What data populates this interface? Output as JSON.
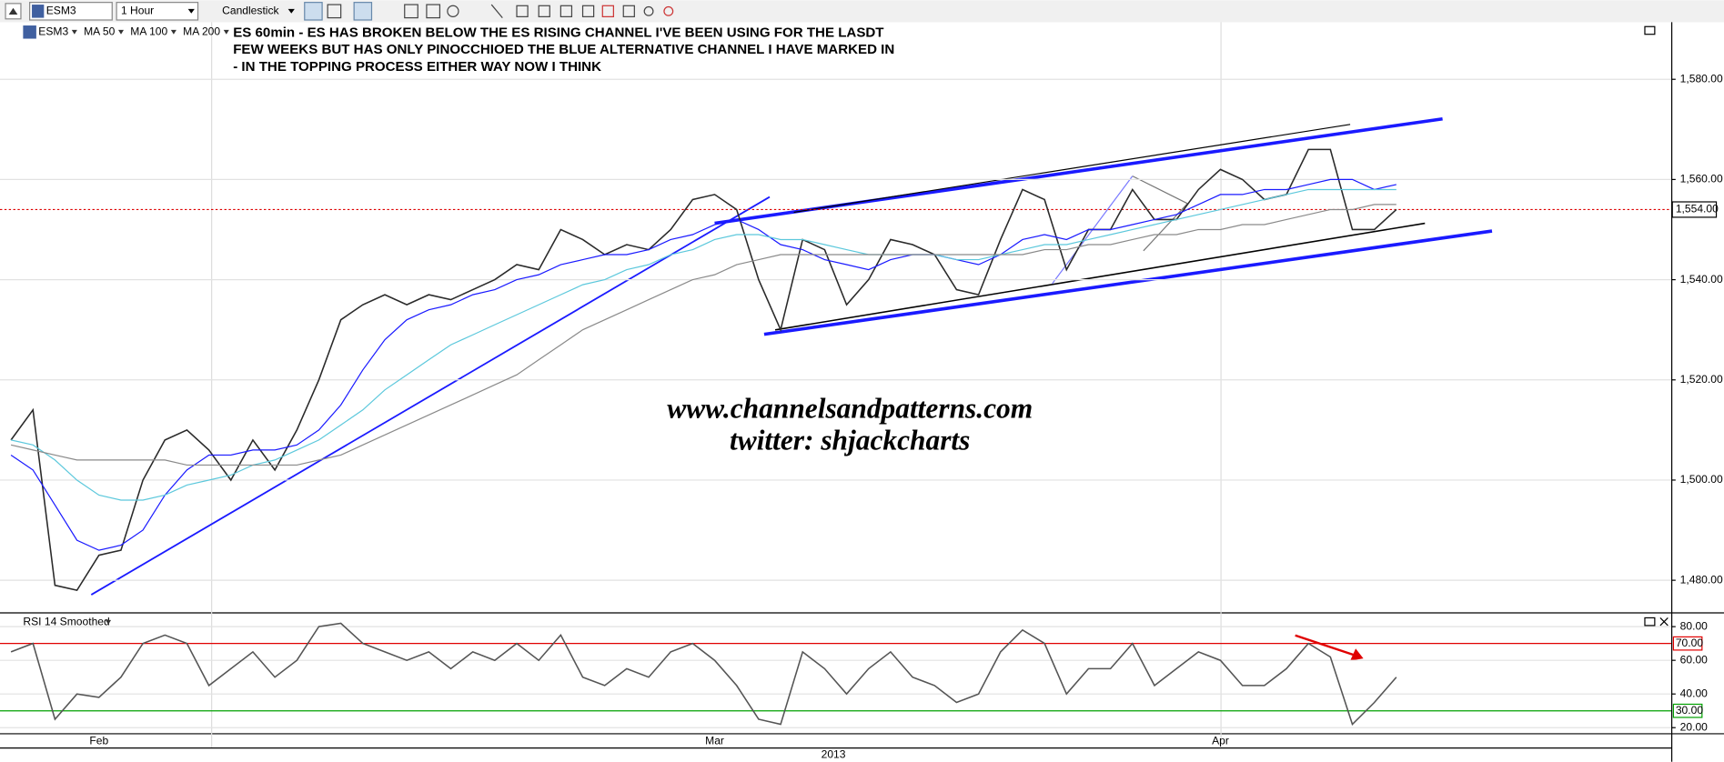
{
  "toolbar": {
    "symbol": "ESM3",
    "interval": "1 Hour",
    "chart_style": "Candlestick"
  },
  "chart_data": [
    {
      "type": "line",
      "annotation": [
        "ES 60min - ES HAS BROKEN BELOW THE ES RISING CHANNEL I'VE BEEN USING FOR THE LASDT",
        "FEW WEEKS BUT HAS ONLY PINOCCHIOED THE BLUE ALTERNATIVE CHANNEL I HAVE MARKED IN",
        "- IN THE TOPPING PROCESS EITHER WAY NOW I THINK"
      ],
      "watermark": [
        "www.channelsandpatterns.com",
        "twitter: shjackcharts"
      ],
      "series": [
        {
          "name": "ESM3",
          "color": "#2a2a2a",
          "values": [
            1508,
            1514,
            1479,
            1478,
            1485,
            1486,
            1500,
            1508,
            1510,
            1506,
            1500,
            1508,
            1502,
            1510,
            1520,
            1532,
            1535,
            1537,
            1535,
            1537,
            1536,
            1538,
            1540,
            1543,
            1542,
            1550,
            1548,
            1545,
            1547,
            1546,
            1550,
            1556,
            1557,
            1554,
            1540,
            1530,
            1548,
            1546,
            1535,
            1540,
            1548,
            1547,
            1545,
            1538,
            1537,
            1548,
            1558,
            1556,
            1542,
            1550,
            1550,
            1558,
            1552,
            1552,
            1558,
            1562,
            1560,
            1556,
            1557,
            1566,
            1566,
            1550,
            1550,
            1554,
            null,
            null,
            null,
            null,
            null,
            null,
            null,
            null,
            null,
            null,
            null,
            null
          ]
        },
        {
          "name": "MA 50",
          "color": "#1a1aff",
          "values": [
            1505,
            1502,
            1495,
            1488,
            1486,
            1487,
            1490,
            1497,
            1502,
            1505,
            1505,
            1506,
            1506,
            1507,
            1510,
            1515,
            1522,
            1528,
            1532,
            1534,
            1535,
            1537,
            1538,
            1540,
            1541,
            1543,
            1544,
            1545,
            1545,
            1546,
            1548,
            1549,
            1551,
            1552,
            1550,
            1547,
            1546,
            1544,
            1543,
            1542,
            1544,
            1545,
            1545,
            1544,
            1543,
            1545,
            1548,
            1549,
            1548,
            1550,
            1550,
            1551,
            1552,
            1553,
            1555,
            1557,
            1557,
            1558,
            1558,
            1559,
            1560,
            1560,
            1558,
            1559,
            null,
            null,
            null,
            null,
            null,
            null,
            null,
            null,
            null,
            null,
            null,
            null
          ]
        },
        {
          "name": "MA 100",
          "color": "#5cc8dc",
          "values": [
            1508,
            1507,
            1504,
            1500,
            1497,
            1496,
            1496,
            1497,
            1499,
            1500,
            1501,
            1503,
            1504,
            1506,
            1508,
            1511,
            1514,
            1518,
            1521,
            1524,
            1527,
            1529,
            1531,
            1533,
            1535,
            1537,
            1539,
            1540,
            1542,
            1543,
            1545,
            1546,
            1548,
            1549,
            1549,
            1548,
            1548,
            1547,
            1546,
            1545,
            1545,
            1545,
            1545,
            1544,
            1544,
            1545,
            1546,
            1547,
            1547,
            1548,
            1549,
            1550,
            1551,
            1552,
            1553,
            1554,
            1555,
            1556,
            1557,
            1558,
            1558,
            1558,
            1558,
            1558,
            null,
            null,
            null,
            null,
            null,
            null,
            null,
            null,
            null,
            null,
            null,
            null
          ]
        },
        {
          "name": "MA 200",
          "color": "#8a8a8a",
          "values": [
            1507,
            1506,
            1505,
            1504,
            1504,
            1504,
            1504,
            1504,
            1503,
            1503,
            1503,
            1503,
            1503,
            1503,
            1504,
            1505,
            1507,
            1509,
            1511,
            1513,
            1515,
            1517,
            1519,
            1521,
            1524,
            1527,
            1530,
            1532,
            1534,
            1536,
            1538,
            1540,
            1541,
            1543,
            1544,
            1545,
            1545,
            1545,
            1545,
            1545,
            1545,
            1545,
            1545,
            1545,
            1545,
            1545,
            1545,
            1546,
            1546,
            1547,
            1547,
            1548,
            1549,
            1549,
            1550,
            1550,
            1551,
            1551,
            1552,
            1553,
            1554,
            1554,
            1555,
            1555,
            null,
            null,
            null,
            null,
            null,
            null,
            null,
            null,
            null,
            null,
            null,
            null
          ]
        }
      ],
      "ylim": [
        1473.6,
        1591.4
      ],
      "yticks": [
        {
          "value": 1480,
          "label": "1,480.00"
        },
        {
          "value": 1500,
          "label": "1,500.00"
        },
        {
          "value": 1520,
          "label": "1,520.00"
        },
        {
          "value": 1540,
          "label": "1,540.00"
        },
        {
          "value": 1560,
          "label": "1,560.00"
        },
        {
          "value": 1580,
          "label": "1,580.00"
        }
      ],
      "grid": true,
      "price_marker": {
        "value": 1554,
        "label": "1,554.00",
        "color": "#dd0000"
      }
    },
    {
      "type": "line",
      "title": "RSI 14 Smoothed",
      "xlabel": "2013",
      "categories": [
        null,
        null,
        null,
        null,
        "Feb",
        null,
        null,
        null,
        null,
        null,
        null,
        null,
        null,
        null,
        null,
        null,
        null,
        null,
        null,
        null,
        null,
        null,
        null,
        null,
        null,
        null,
        null,
        null,
        null,
        null,
        null,
        null,
        "Mar",
        null,
        null,
        null,
        null,
        null,
        null,
        null,
        null,
        null,
        null,
        null,
        null,
        null,
        null,
        null,
        null,
        null,
        null,
        null,
        null,
        null,
        null,
        "Apr",
        null,
        null,
        null,
        null,
        null,
        null,
        null,
        null,
        null,
        null,
        null,
        null,
        null,
        null,
        null,
        null,
        null,
        null,
        null,
        null
      ],
      "series": [
        {
          "color": "#555555",
          "values": [
            65,
            70,
            25,
            40,
            38,
            50,
            70,
            75,
            70,
            45,
            55,
            65,
            50,
            60,
            80,
            82,
            70,
            65,
            60,
            65,
            55,
            65,
            60,
            70,
            60,
            75,
            50,
            45,
            55,
            50,
            65,
            70,
            60,
            45,
            25,
            22,
            65,
            55,
            40,
            55,
            65,
            50,
            45,
            35,
            40,
            65,
            78,
            70,
            40,
            55,
            55,
            70,
            45,
            55,
            65,
            60,
            45,
            45,
            55,
            70,
            62,
            22,
            35,
            50,
            null,
            null,
            null,
            null,
            null,
            null,
            null,
            null,
            null,
            null,
            null,
            null
          ]
        }
      ],
      "ylim": [
        16.7,
        87.2
      ],
      "yticks": [
        {
          "value": 20,
          "label": "20.00"
        },
        {
          "value": 40,
          "label": "40.00"
        },
        {
          "value": 60,
          "label": "60.00"
        },
        {
          "value": 80,
          "label": "80.00"
        }
      ],
      "grid": true,
      "reference_lines": [
        {
          "value": 70,
          "label": "70.00",
          "color": "#e00000"
        },
        {
          "value": 30,
          "label": "30.00",
          "color": "#00a000"
        }
      ]
    }
  ]
}
